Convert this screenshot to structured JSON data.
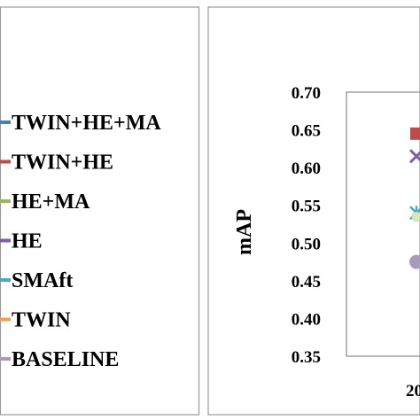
{
  "chart_data": {
    "type": "scatter",
    "ylabel": "mAP",
    "xlabel": "",
    "ylim": [
      0.35,
      0.7
    ],
    "yticks": [
      "0.70",
      "0.65",
      "0.60",
      "0.55",
      "0.50",
      "0.45",
      "0.40",
      "0.35"
    ],
    "x_tick_visible": "20",
    "grid": false,
    "legend_position": "left",
    "series": [
      {
        "name": "TWIN+HE+MA",
        "color": "#4a7ebb",
        "marker": "diamond",
        "value": null
      },
      {
        "name": "TWIN+HE",
        "color": "#be4b48",
        "marker": "square",
        "value": 0.645
      },
      {
        "name": "HE+MA",
        "color": "#98b954",
        "marker": "triangle",
        "value": null
      },
      {
        "name": "HE",
        "color": "#7d60a0",
        "marker": "x",
        "value": 0.615
      },
      {
        "name": "SMAft",
        "color": "#46aac5",
        "marker": "star",
        "value": 0.54
      },
      {
        "name": "TWIN",
        "color": "#f59d56",
        "marker": "circle-light",
        "value": 0.535
      },
      {
        "name": "BASELINE",
        "color": "#a99bbd",
        "marker": "circle",
        "value": 0.475
      }
    ]
  }
}
